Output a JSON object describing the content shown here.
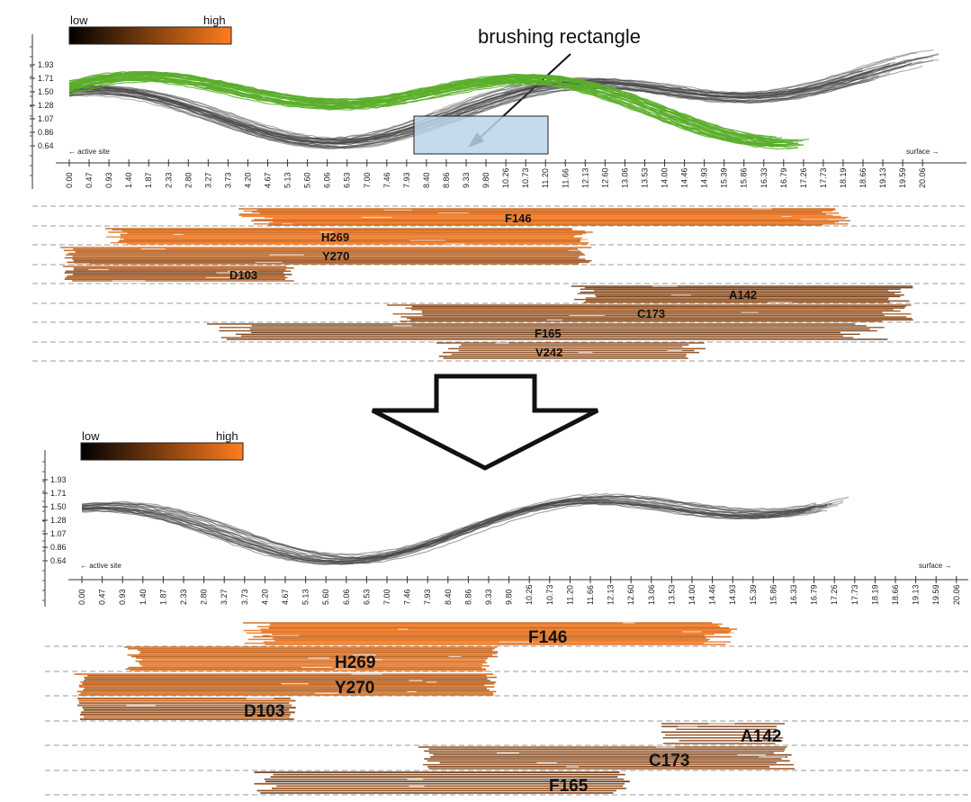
{
  "annotation": {
    "text": "brushing rectangle"
  },
  "colors": {
    "low": "#000000",
    "high": "#ff7d1f",
    "green": "#5aae2a",
    "gray": "#333333",
    "brush": "#bcd3ea"
  },
  "panels": [
    {
      "id": "top",
      "legend": {
        "low": "low",
        "high": "high"
      },
      "y_ticks": [
        "1.93",
        "1.71",
        "1.50",
        "1.28",
        "1.07",
        "0.86",
        "0.64"
      ],
      "x_ticks": [
        "0.00",
        "0.47",
        "0.93",
        "1.40",
        "1.87",
        "2.33",
        "2.80",
        "3.27",
        "3.73",
        "4.20",
        "4.67",
        "5.13",
        "5.60",
        "6.06",
        "6.53",
        "7.00",
        "7.46",
        "7.93",
        "8.40",
        "8.86",
        "9.33",
        "9.80",
        "10.26",
        "10.73",
        "11.20",
        "11.66",
        "12.13",
        "12.60",
        "13.06",
        "13.53",
        "14.00",
        "14.46",
        "14.93",
        "15.39",
        "15.86",
        "16.33",
        "16.79",
        "17.26",
        "17.73",
        "18.19",
        "18.66",
        "19.13",
        "19.59",
        "20.06"
      ],
      "left_caption": "← active site",
      "right_caption": "surface →",
      "residues": [
        "F146",
        "H269",
        "Y270",
        "D103",
        "A142",
        "C173",
        "F165",
        "V242"
      ]
    },
    {
      "id": "bottom",
      "legend": {
        "low": "low",
        "high": "high"
      },
      "y_ticks": [
        "1.93",
        "1.71",
        "1.50",
        "1.28",
        "1.07",
        "0.86",
        "0.64"
      ],
      "x_ticks": [
        "0.00",
        "0.47",
        "0.93",
        "1.40",
        "1.87",
        "2.33",
        "2.80",
        "3.27",
        "3.73",
        "4.20",
        "4.67",
        "5.13",
        "5.60",
        "6.06",
        "6.53",
        "7.00",
        "7.46",
        "7.93",
        "8.40",
        "8.86",
        "9.33",
        "9.80",
        "10.26",
        "10.73",
        "11.20",
        "11.66",
        "12.13",
        "12.60",
        "13.06",
        "13.53",
        "14.00",
        "14.46",
        "14.93",
        "15.39",
        "15.86",
        "16.33",
        "16.79",
        "17.26",
        "17.73",
        "18.19",
        "18.66",
        "19.13",
        "19.59",
        "20.06"
      ],
      "left_caption": "← active site",
      "right_caption": "surface →",
      "residues": [
        "F146",
        "H269",
        "Y270",
        "D103",
        "A142",
        "C173",
        "F165"
      ]
    }
  ]
}
